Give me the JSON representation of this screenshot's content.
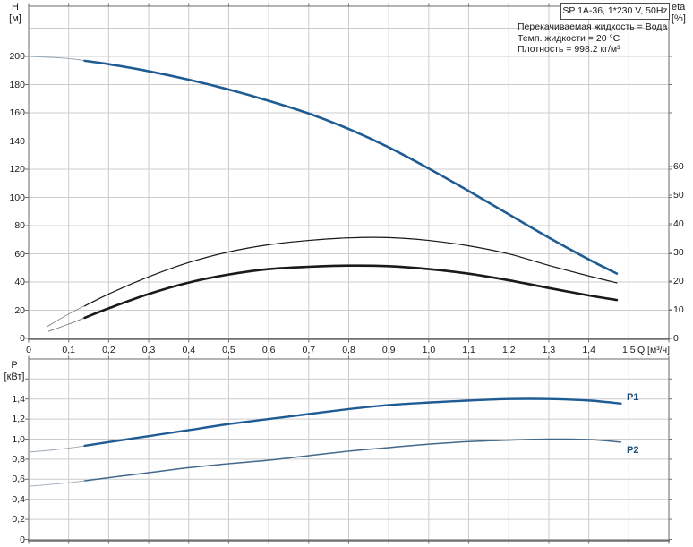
{
  "title_box": {
    "text": "SP 1A-36, 1*230 V, 50Hz"
  },
  "conditions": [
    "Перекачиваемая жидкость = Вода",
    "Темп. жидкости = 20 °C",
    "Плотность = 998.2 кг/м³"
  ],
  "axis_units": {
    "h_1": "H",
    "h_2": "[м]",
    "eta_1": "eta",
    "eta_2": "[%]",
    "p_1": "P",
    "p_2": "[кВт]",
    "q": "Q [м³/ч]"
  },
  "curve_labels": {
    "p1": "P1",
    "p2": "P2"
  },
  "colors": {
    "blue": "#1f5c94",
    "black": "#1a1a1a",
    "p2_blue": "#44688a",
    "label_blue": "#1f4e79",
    "lead_blue": "#9aa8b6",
    "lead_black": "#777777",
    "grid": "#cccccc",
    "border": "#8c8c8c",
    "axis_dark": "#707070"
  },
  "chart_data": [
    {
      "type": "line",
      "panel": "top",
      "title": "",
      "x_axis": {
        "label": "Q [м³/ч]",
        "min": 0,
        "max": 1.6,
        "ticks": [
          {
            "v": 0.0,
            "label": "0"
          },
          {
            "v": 0.1,
            "label": "0,1"
          },
          {
            "v": 0.2,
            "label": "0,2"
          },
          {
            "v": 0.3,
            "label": "0,3"
          },
          {
            "v": 0.4,
            "label": "0,4"
          },
          {
            "v": 0.5,
            "label": "0,5"
          },
          {
            "v": 0.6,
            "label": "0,6"
          },
          {
            "v": 0.7,
            "label": "0,7"
          },
          {
            "v": 0.8,
            "label": "0,8"
          },
          {
            "v": 0.9,
            "label": "0,9"
          },
          {
            "v": 1.0,
            "label": "1,0"
          },
          {
            "v": 1.1,
            "label": "1,1"
          },
          {
            "v": 1.2,
            "label": "1,2"
          },
          {
            "v": 1.3,
            "label": "1,3"
          },
          {
            "v": 1.4,
            "label": "1,4"
          },
          {
            "v": 1.5,
            "label": "1,5"
          }
        ]
      },
      "y_left": {
        "name": "H [м]",
        "min": 0,
        "max": 235,
        "grid_step": 20,
        "ticks": [
          {
            "v": 200,
            "label": "200"
          },
          {
            "v": 180,
            "label": "180"
          },
          {
            "v": 160,
            "label": "160"
          },
          {
            "v": 140,
            "label": "140"
          },
          {
            "v": 120,
            "label": "120"
          },
          {
            "v": 100,
            "label": "100"
          },
          {
            "v": 80,
            "label": "80"
          },
          {
            "v": 60,
            "label": "60"
          },
          {
            "v": 40,
            "label": "40"
          },
          {
            "v": 20,
            "label": "20"
          },
          {
            "v": 0,
            "label": "0"
          }
        ]
      },
      "y_right": {
        "name": "eta [%]",
        "min": 0,
        "max": 116,
        "ticks": [
          {
            "v": 60,
            "label": "60"
          },
          {
            "v": 50,
            "label": "50"
          },
          {
            "v": 40,
            "label": "40"
          },
          {
            "v": 30,
            "label": "30"
          },
          {
            "v": 20,
            "label": "20"
          },
          {
            "v": 10,
            "label": "10"
          },
          {
            "v": 0,
            "label": "0"
          }
        ]
      },
      "series": [
        {
          "name": "H",
          "axis": "left",
          "x": [
            0,
            0.1,
            0.2,
            0.3,
            0.4,
            0.5,
            0.6,
            0.7,
            0.8,
            0.9,
            1.0,
            1.1,
            1.2,
            1.3,
            1.4,
            1.47
          ],
          "y": [
            200,
            198.5,
            194.5,
            189.5,
            183.5,
            176.5,
            168.5,
            159.5,
            148.5,
            135.5,
            120.5,
            104.5,
            88,
            71.5,
            56,
            46
          ]
        },
        {
          "name": "eta-pump",
          "axis": "right",
          "x": [
            0.045,
            0.1,
            0.2,
            0.3,
            0.4,
            0.5,
            0.6,
            0.7,
            0.8,
            0.9,
            1.0,
            1.1,
            1.2,
            1.3,
            1.4,
            1.47
          ],
          "y": [
            4,
            8.5,
            15.5,
            21.5,
            26.5,
            30.2,
            32.7,
            34.2,
            35.1,
            35.2,
            34.2,
            32.3,
            29.5,
            25.5,
            21.8,
            19.4
          ]
        },
        {
          "name": "eta-total",
          "axis": "right",
          "x": [
            0.05,
            0.1,
            0.2,
            0.3,
            0.4,
            0.5,
            0.6,
            0.7,
            0.8,
            0.9,
            1.0,
            1.1,
            1.2,
            1.3,
            1.4,
            1.47
          ],
          "y": [
            2.5,
            5,
            10.5,
            15.5,
            19.5,
            22.3,
            24.2,
            25.0,
            25.4,
            25.2,
            24.2,
            22.6,
            20.3,
            17.6,
            15.0,
            13.4
          ]
        }
      ]
    },
    {
      "type": "line",
      "panel": "bottom",
      "title": "",
      "y_left": {
        "name": "P [кВт]",
        "min": 0,
        "max": 1.8,
        "grid_step": 0.2,
        "ticks": [
          {
            "v": 1.4,
            "label": "1,4"
          },
          {
            "v": 1.2,
            "label": "1,2"
          },
          {
            "v": 1.0,
            "label": "1,0"
          },
          {
            "v": 0.8,
            "label": "0,8"
          },
          {
            "v": 0.6,
            "label": "0,6"
          },
          {
            "v": 0.4,
            "label": "0,4"
          },
          {
            "v": 0.2,
            "label": "0,2"
          },
          {
            "v": 0.0,
            "label": "0"
          },
          {
            "v": 1.6,
            "label": ""
          }
        ]
      },
      "series": [
        {
          "name": "P1",
          "axis": "left",
          "x": [
            0,
            0.1,
            0.2,
            0.3,
            0.4,
            0.5,
            0.6,
            0.7,
            0.8,
            0.9,
            1.0,
            1.1,
            1.2,
            1.3,
            1.4,
            1.48
          ],
          "y": [
            0.87,
            0.91,
            0.97,
            1.03,
            1.09,
            1.15,
            1.2,
            1.25,
            1.3,
            1.34,
            1.365,
            1.385,
            1.4,
            1.4,
            1.385,
            1.355
          ]
        },
        {
          "name": "P2",
          "axis": "left",
          "x": [
            0,
            0.1,
            0.2,
            0.3,
            0.4,
            0.5,
            0.6,
            0.7,
            0.8,
            0.9,
            1.0,
            1.1,
            1.2,
            1.3,
            1.4,
            1.48
          ],
          "y": [
            0.53,
            0.565,
            0.615,
            0.665,
            0.715,
            0.755,
            0.79,
            0.835,
            0.88,
            0.915,
            0.95,
            0.975,
            0.99,
            1.0,
            0.995,
            0.97
          ]
        }
      ]
    }
  ]
}
